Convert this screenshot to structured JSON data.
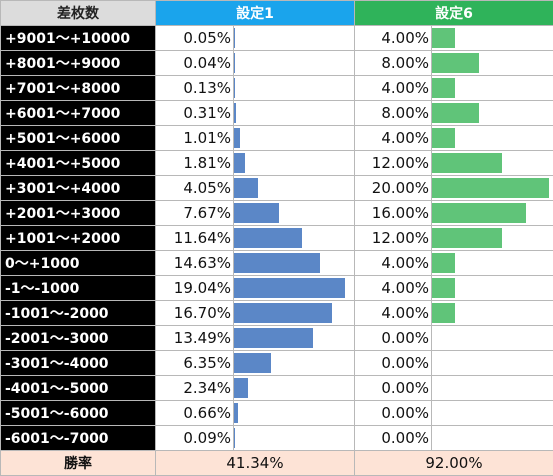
{
  "chart_data": {
    "type": "table",
    "headers": {
      "label": "差枚数",
      "s1": "設定1",
      "s6": "設定6"
    },
    "bar_max": 20.0,
    "colors": {
      "s1_header": "#1aa4ec",
      "s6_header": "#2fb35a",
      "s1_bar": "#5b87c7",
      "s6_bar": "#60c479",
      "footer": "#fde3d6"
    },
    "rows": [
      {
        "label": "+9001～+10000",
        "s1": 0.05,
        "s1_text": "0.05%",
        "s6": 4.0,
        "s6_text": "4.00%"
      },
      {
        "label": "+8001～+9000",
        "s1": 0.04,
        "s1_text": "0.04%",
        "s6": 8.0,
        "s6_text": "8.00%"
      },
      {
        "label": "+7001～+8000",
        "s1": 0.13,
        "s1_text": "0.13%",
        "s6": 4.0,
        "s6_text": "4.00%"
      },
      {
        "label": "+6001～+7000",
        "s1": 0.31,
        "s1_text": "0.31%",
        "s6": 8.0,
        "s6_text": "8.00%"
      },
      {
        "label": "+5001～+6000",
        "s1": 1.01,
        "s1_text": "1.01%",
        "s6": 4.0,
        "s6_text": "4.00%"
      },
      {
        "label": "+4001～+5000",
        "s1": 1.81,
        "s1_text": "1.81%",
        "s6": 12.0,
        "s6_text": "12.00%"
      },
      {
        "label": "+3001～+4000",
        "s1": 4.05,
        "s1_text": "4.05%",
        "s6": 20.0,
        "s6_text": "20.00%"
      },
      {
        "label": "+2001～+3000",
        "s1": 7.67,
        "s1_text": "7.67%",
        "s6": 16.0,
        "s6_text": "16.00%"
      },
      {
        "label": "+1001～+2000",
        "s1": 11.64,
        "s1_text": "11.64%",
        "s6": 12.0,
        "s6_text": "12.00%"
      },
      {
        "label": "0～+1000",
        "s1": 14.63,
        "s1_text": "14.63%",
        "s6": 4.0,
        "s6_text": "4.00%"
      },
      {
        "label": "-1～-1000",
        "s1": 19.04,
        "s1_text": "19.04%",
        "s6": 4.0,
        "s6_text": "4.00%"
      },
      {
        "label": "-1001～-2000",
        "s1": 16.7,
        "s1_text": "16.70%",
        "s6": 4.0,
        "s6_text": "4.00%"
      },
      {
        "label": "-2001～-3000",
        "s1": 13.49,
        "s1_text": "13.49%",
        "s6": 0.0,
        "s6_text": "0.00%"
      },
      {
        "label": "-3001～-4000",
        "s1": 6.35,
        "s1_text": "6.35%",
        "s6": 0.0,
        "s6_text": "0.00%"
      },
      {
        "label": "-4001～-5000",
        "s1": 2.34,
        "s1_text": "2.34%",
        "s6": 0.0,
        "s6_text": "0.00%"
      },
      {
        "label": "-5001～-6000",
        "s1": 0.66,
        "s1_text": "0.66%",
        "s6": 0.0,
        "s6_text": "0.00%"
      },
      {
        "label": "-6001～-7000",
        "s1": 0.09,
        "s1_text": "0.09%",
        "s6": 0.0,
        "s6_text": "0.00%"
      }
    ],
    "footer": {
      "label": "勝率",
      "s1_text": "41.34%",
      "s6_text": "92.00%"
    }
  }
}
